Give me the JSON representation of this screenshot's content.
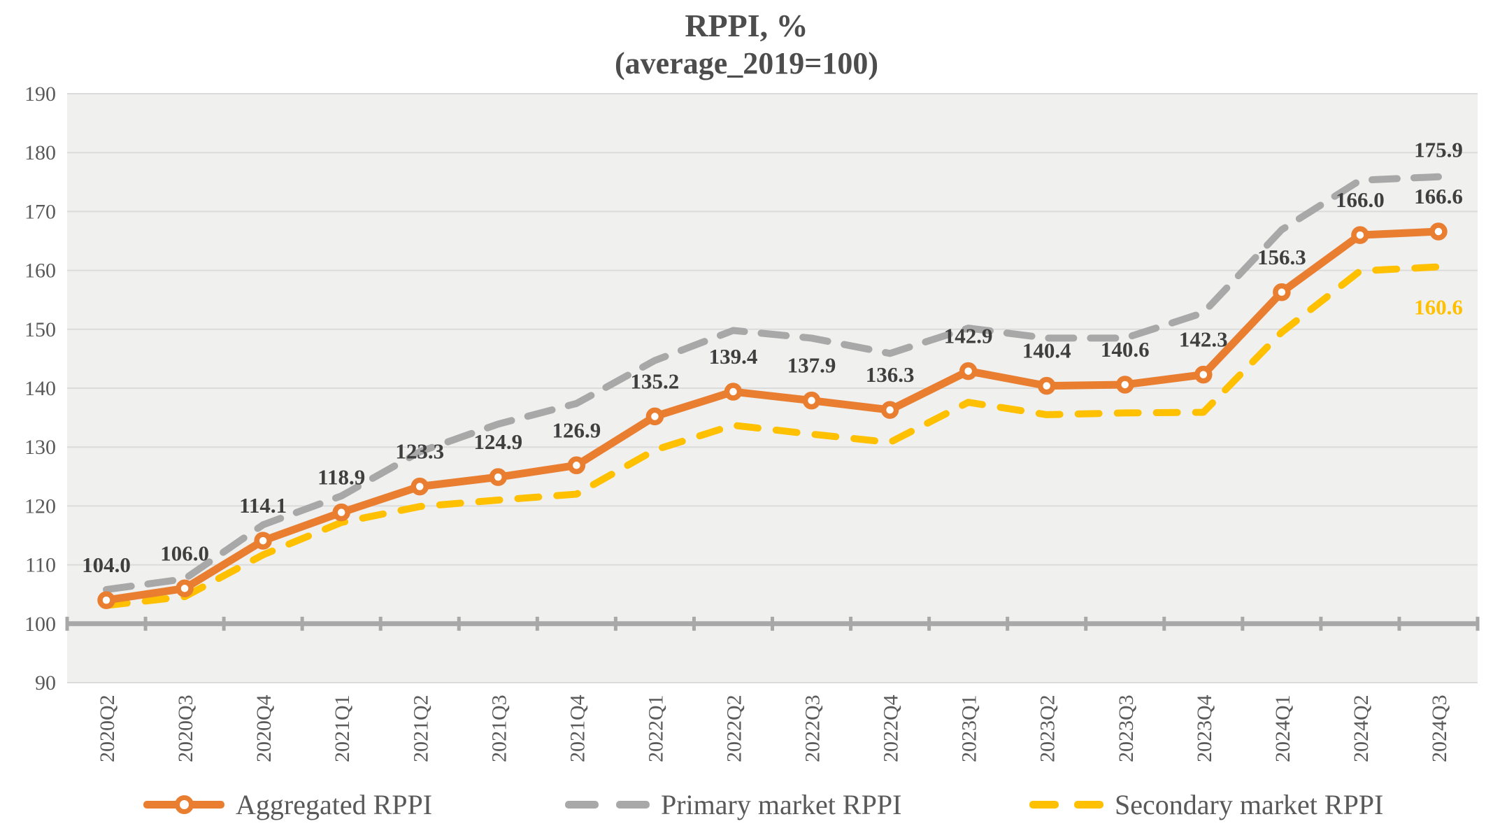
{
  "title": {
    "line1": "RPPI, %",
    "line2": "(average_2019=100)"
  },
  "colors": {
    "aggregated": "#E97E30",
    "primary": "#A8A8A8",
    "secondary": "#FFC000",
    "data_label_text": "#3F3F3F",
    "axis_text": "#595959",
    "gridline": "#DBDBDB",
    "axis_line": "#A8A8A8",
    "plot_background": "#F0F0EF",
    "title_text": "#4D4D4D"
  },
  "chart_data": {
    "type": "line",
    "title": "RPPI, % (average_2019=100)",
    "categories": [
      "2020Q2",
      "2020Q3",
      "2020Q4",
      "2021Q1",
      "2021Q2",
      "2021Q3",
      "2021Q4",
      "2022Q1",
      "2022Q2",
      "2022Q3",
      "2022Q4",
      "2023Q1",
      "2023Q2",
      "2023Q3",
      "2023Q4",
      "2024Q1",
      "2024Q2",
      "2024Q3"
    ],
    "series": [
      {
        "name": "Aggregated RPPI",
        "color": "#E97E30",
        "line_style": "solid",
        "marker": "circle",
        "data_labels": "all",
        "values": [
          104.0,
          106.0,
          114.1,
          118.9,
          123.3,
          124.9,
          126.9,
          135.2,
          139.4,
          137.9,
          136.3,
          142.9,
          140.4,
          140.6,
          142.3,
          156.3,
          166.0,
          166.6
        ]
      },
      {
        "name": "Primary market RPPI",
        "color": "#A8A8A8",
        "line_style": "dashed",
        "marker": "none",
        "data_labels": "last",
        "last_label": "175.9",
        "values": [
          105.8,
          107.6,
          116.8,
          121.7,
          129.2,
          133.9,
          137.4,
          144.7,
          149.8,
          148.5,
          145.9,
          150.2,
          148.5,
          148.5,
          152.8,
          166.9,
          175.3,
          175.9
        ]
      },
      {
        "name": "Secondary market RPPI",
        "color": "#FFC000",
        "line_style": "dashed",
        "marker": "none",
        "data_labels": "last",
        "last_label": "160.6",
        "values": [
          103.1,
          104.6,
          111.7,
          117.2,
          119.9,
          121.0,
          122.0,
          129.5,
          133.7,
          132.2,
          130.8,
          137.6,
          135.5,
          135.8,
          135.9,
          149.5,
          159.9,
          160.6
        ]
      }
    ],
    "ylim": [
      90,
      190
    ],
    "ytick_step": 10,
    "yticks": [
      190,
      180,
      170,
      160,
      150,
      140,
      130,
      120,
      110,
      100,
      90
    ],
    "grid": true,
    "x_axis_cross_value": 100,
    "legend_position": "bottom"
  },
  "legend": {
    "items": [
      {
        "label": "Aggregated RPPI"
      },
      {
        "label": "Primary market RPPI"
      },
      {
        "label": "Secondary market RPPI"
      }
    ]
  }
}
